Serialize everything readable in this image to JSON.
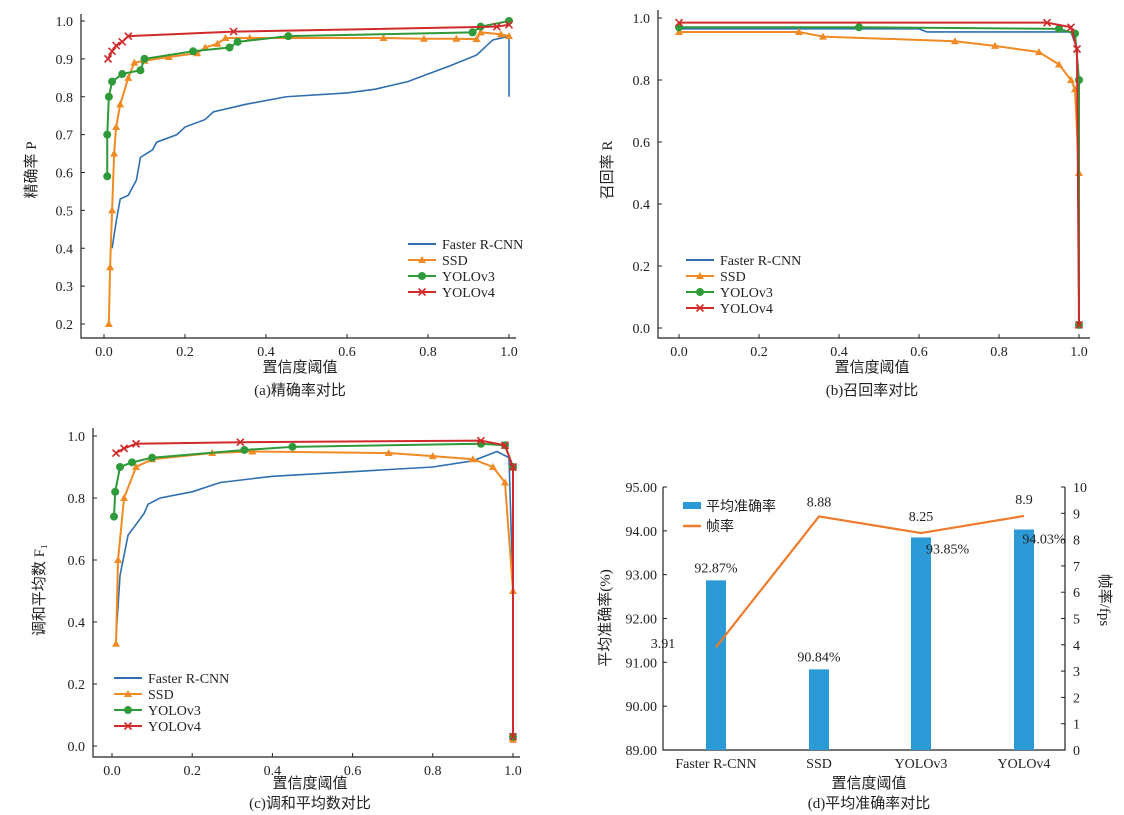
{
  "chart_data": [
    {
      "id": "a",
      "type": "line",
      "title": "(a)精确率对比",
      "xlabel": "置信度阈值",
      "ylabel": "精确率 P",
      "xlim": [
        0,
        1
      ],
      "ylim": [
        0.2,
        1.0
      ],
      "xticks": [
        "0.0",
        "0.2",
        "0.4",
        "0.6",
        "0.8",
        "1.0"
      ],
      "yticks": [
        "0.2",
        "0.3",
        "0.4",
        "0.5",
        "0.6",
        "0.7",
        "0.8",
        "0.9",
        "1.0"
      ],
      "legend": "bottom-right",
      "series": [
        {
          "name": "Faster R-CNN",
          "color": "#2f6fad",
          "marker": "none",
          "points": [
            [
              0.02,
              0.4
            ],
            [
              0.03,
              0.47
            ],
            [
              0.04,
              0.53
            ],
            [
              0.06,
              0.54
            ],
            [
              0.08,
              0.58
            ],
            [
              0.09,
              0.64
            ],
            [
              0.12,
              0.66
            ],
            [
              0.13,
              0.68
            ],
            [
              0.18,
              0.7
            ],
            [
              0.2,
              0.72
            ],
            [
              0.25,
              0.74
            ],
            [
              0.27,
              0.76
            ],
            [
              0.35,
              0.78
            ],
            [
              0.45,
              0.8
            ],
            [
              0.6,
              0.81
            ],
            [
              0.67,
              0.82
            ],
            [
              0.75,
              0.84
            ],
            [
              0.8,
              0.86
            ],
            [
              0.85,
              0.88
            ],
            [
              0.92,
              0.91
            ],
            [
              0.96,
              0.95
            ],
            [
              1.0,
              0.96
            ],
            [
              1.0,
              0.8
            ]
          ]
        },
        {
          "name": "SSD",
          "color": "#f08a24",
          "marker": "triangle",
          "points": [
            [
              0.012,
              0.2
            ],
            [
              0.015,
              0.35
            ],
            [
              0.02,
              0.5
            ],
            [
              0.025,
              0.65
            ],
            [
              0.03,
              0.72
            ],
            [
              0.04,
              0.78
            ],
            [
              0.06,
              0.85
            ],
            [
              0.075,
              0.89
            ],
            [
              0.1,
              0.895
            ],
            [
              0.16,
              0.905
            ],
            [
              0.23,
              0.915
            ],
            [
              0.25,
              0.93
            ],
            [
              0.28,
              0.94
            ],
            [
              0.3,
              0.955
            ],
            [
              0.36,
              0.955
            ],
            [
              0.69,
              0.955
            ],
            [
              0.79,
              0.953
            ],
            [
              0.87,
              0.953
            ],
            [
              0.92,
              0.952
            ],
            [
              0.93,
              0.97
            ],
            [
              0.98,
              0.965
            ],
            [
              1.0,
              0.96
            ]
          ]
        },
        {
          "name": "YOLOv3",
          "color": "#2e9a3a",
          "marker": "circle",
          "points": [
            [
              0.008,
              0.59
            ],
            [
              0.008,
              0.7
            ],
            [
              0.012,
              0.8
            ],
            [
              0.02,
              0.84
            ],
            [
              0.045,
              0.86
            ],
            [
              0.09,
              0.87
            ],
            [
              0.1,
              0.9
            ],
            [
              0.22,
              0.92
            ],
            [
              0.31,
              0.93
            ],
            [
              0.33,
              0.945
            ],
            [
              0.455,
              0.96
            ],
            [
              0.91,
              0.97
            ],
            [
              0.93,
              0.985
            ],
            [
              1.0,
              1.0
            ]
          ]
        },
        {
          "name": "YOLOv4",
          "color": "#d02a2a",
          "marker": "x",
          "points": [
            [
              0.01,
              0.9
            ],
            [
              0.02,
              0.92
            ],
            [
              0.03,
              0.935
            ],
            [
              0.045,
              0.945
            ],
            [
              0.06,
              0.96
            ],
            [
              0.32,
              0.972
            ],
            [
              0.97,
              0.985
            ],
            [
              1.0,
              0.99
            ]
          ]
        }
      ]
    },
    {
      "id": "b",
      "type": "line",
      "title": "(b)召回率对比",
      "xlabel": "置信度阈值",
      "ylabel": "召回率 R",
      "xlim": [
        0,
        1
      ],
      "ylim": [
        0,
        1.0
      ],
      "xticks": [
        "0.0",
        "0.2",
        "0.4",
        "0.6",
        "0.8",
        "1.0"
      ],
      "yticks": [
        "0.0",
        "0.2",
        "0.4",
        "0.6",
        "0.8",
        "1.0"
      ],
      "legend": "bottom-left",
      "series": [
        {
          "name": "Faster R-CNN",
          "color": "#2f6fad",
          "marker": "none",
          "points": [
            [
              0,
              0.965
            ],
            [
              0.6,
              0.965
            ],
            [
              0.62,
              0.955
            ],
            [
              0.98,
              0.955
            ],
            [
              0.995,
              0.9
            ],
            [
              1.0,
              0.01
            ]
          ]
        },
        {
          "name": "SSD",
          "color": "#f08a24",
          "marker": "triangle",
          "points": [
            [
              0,
              0.955
            ],
            [
              0.3,
              0.955
            ],
            [
              0.36,
              0.94
            ],
            [
              0.69,
              0.925
            ],
            [
              0.79,
              0.91
            ],
            [
              0.9,
              0.89
            ],
            [
              0.95,
              0.85
            ],
            [
              0.98,
              0.8
            ],
            [
              0.99,
              0.77
            ],
            [
              1.0,
              0.5
            ],
            [
              1.0,
              0.01
            ]
          ]
        },
        {
          "name": "YOLOv3",
          "color": "#2e9a3a",
          "marker": "circle",
          "points": [
            [
              0,
              0.97
            ],
            [
              0.45,
              0.97
            ],
            [
              0.95,
              0.965
            ],
            [
              0.99,
              0.95
            ],
            [
              1.0,
              0.8
            ],
            [
              1.0,
              0.01
            ]
          ]
        },
        {
          "name": "YOLOv4",
          "color": "#d02a2a",
          "marker": "x",
          "points": [
            [
              0,
              0.985
            ],
            [
              0.92,
              0.985
            ],
            [
              0.98,
              0.97
            ],
            [
              0.995,
              0.9
            ],
            [
              1.0,
              0.01
            ]
          ]
        }
      ]
    },
    {
      "id": "c",
      "type": "line",
      "title": "(c)调和平均数对比",
      "xlabel": "置信度阈值",
      "ylabel": "调和平均数 F₁",
      "xlim": [
        0,
        1
      ],
      "ylim": [
        0,
        1.0
      ],
      "xticks": [
        "0.0",
        "0.2",
        "0.4",
        "0.6",
        "0.8",
        "1.0"
      ],
      "yticks": [
        "0.0",
        "0.2",
        "0.4",
        "0.6",
        "0.8",
        "1.0"
      ],
      "legend": "bottom-left",
      "series": [
        {
          "name": "Faster R-CNN",
          "color": "#2f6fad",
          "marker": "none",
          "points": [
            [
              0.01,
              0.35
            ],
            [
              0.02,
              0.55
            ],
            [
              0.04,
              0.68
            ],
            [
              0.08,
              0.75
            ],
            [
              0.09,
              0.78
            ],
            [
              0.12,
              0.8
            ],
            [
              0.2,
              0.82
            ],
            [
              0.27,
              0.85
            ],
            [
              0.4,
              0.87
            ],
            [
              0.6,
              0.885
            ],
            [
              0.8,
              0.9
            ],
            [
              0.9,
              0.92
            ],
            [
              0.96,
              0.95
            ],
            [
              0.99,
              0.93
            ],
            [
              1.0,
              0.5
            ],
            [
              1.0,
              0.02
            ]
          ]
        },
        {
          "name": "SSD",
          "color": "#f08a24",
          "marker": "triangle",
          "points": [
            [
              0.01,
              0.33
            ],
            [
              0.015,
              0.6
            ],
            [
              0.03,
              0.8
            ],
            [
              0.06,
              0.9
            ],
            [
              0.1,
              0.925
            ],
            [
              0.25,
              0.945
            ],
            [
              0.35,
              0.95
            ],
            [
              0.69,
              0.945
            ],
            [
              0.8,
              0.935
            ],
            [
              0.9,
              0.925
            ],
            [
              0.95,
              0.9
            ],
            [
              0.98,
              0.85
            ],
            [
              1.0,
              0.5
            ],
            [
              1.0,
              0.02
            ]
          ]
        },
        {
          "name": "YOLOv3",
          "color": "#2e9a3a",
          "marker": "circle",
          "points": [
            [
              0.005,
              0.74
            ],
            [
              0.008,
              0.82
            ],
            [
              0.02,
              0.9
            ],
            [
              0.05,
              0.915
            ],
            [
              0.1,
              0.93
            ],
            [
              0.33,
              0.955
            ],
            [
              0.45,
              0.965
            ],
            [
              0.92,
              0.975
            ],
            [
              0.98,
              0.97
            ],
            [
              1.0,
              0.9
            ],
            [
              1.0,
              0.03
            ]
          ]
        },
        {
          "name": "YOLOv4",
          "color": "#d02a2a",
          "marker": "x",
          "points": [
            [
              0.01,
              0.945
            ],
            [
              0.03,
              0.96
            ],
            [
              0.06,
              0.975
            ],
            [
              0.32,
              0.98
            ],
            [
              0.92,
              0.985
            ],
            [
              0.98,
              0.97
            ],
            [
              1.0,
              0.9
            ],
            [
              1.0,
              0.03
            ]
          ]
        }
      ]
    },
    {
      "id": "d",
      "type": "bar+line",
      "title": "(d)平均准确率对比",
      "xlabel": "置信度阈值",
      "ylabel": "平均准确率(%)",
      "y2label": "帧率/fps",
      "categories": [
        "Faster R-CNN",
        "SSD",
        "YOLOv3",
        "YOLOv4"
      ],
      "ylim": [
        89,
        95
      ],
      "y2lim": [
        0,
        10
      ],
      "yticks": [
        "89.00",
        "90.00",
        "91.00",
        "92.00",
        "93.00",
        "94.00",
        "95.00"
      ],
      "y2ticks": [
        "0",
        "1",
        "2",
        "3",
        "4",
        "5",
        "6",
        "7",
        "8",
        "9",
        "10"
      ],
      "legend": "top-left",
      "bar_series": {
        "name": "平均准确率",
        "color": "#2b9ad6",
        "values": [
          92.87,
          90.84,
          93.85,
          94.03
        ],
        "labels": [
          "92.87%",
          "90.84%",
          "93.85%",
          "94.03%"
        ]
      },
      "line_series": {
        "name": "帧率",
        "color": "#ee7b2c",
        "values": [
          3.91,
          8.88,
          8.25,
          8.9
        ],
        "labels": [
          "3.91",
          "8.88",
          "8.25",
          "8.9"
        ]
      }
    }
  ]
}
